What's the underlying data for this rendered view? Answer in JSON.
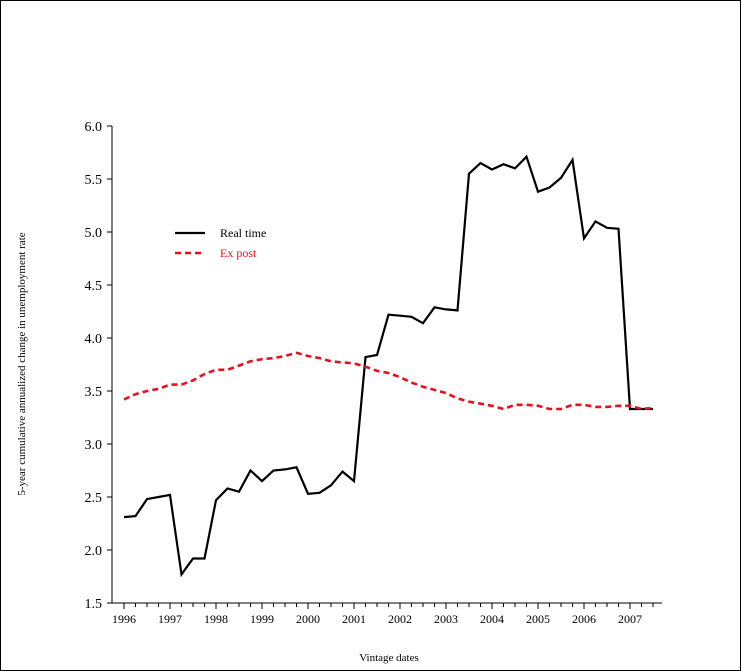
{
  "chart_data": {
    "type": "line",
    "xlabel": "Vintage dates",
    "ylabel": "5-year cumulative annualized change in unemployment rate",
    "ylim": [
      1.5,
      6.0
    ],
    "yticks": [
      "1.5",
      "2.0",
      "2.5",
      "3.0",
      "3.5",
      "4.0",
      "4.5",
      "5.0",
      "5.5",
      "6.0"
    ],
    "xticks": [
      "1996",
      "1997",
      "1998",
      "1999",
      "2000",
      "2001",
      "2002",
      "2003",
      "2004",
      "2005",
      "2006",
      "2007"
    ],
    "legend_position": "upper-left",
    "grid": false,
    "series": [
      {
        "name": "Real time",
        "color": "#000000",
        "style": "solid",
        "x": [
          1996.0,
          1996.25,
          1996.5,
          1996.75,
          1997.0,
          1997.25,
          1997.5,
          1997.75,
          1998.0,
          1998.25,
          1998.5,
          1998.75,
          1999.0,
          1999.25,
          1999.5,
          1999.75,
          2000.0,
          2000.25,
          2000.5,
          2000.75,
          2001.0,
          2001.25,
          2001.5,
          2001.75,
          2002.0,
          2002.25,
          2002.5,
          2002.75,
          2003.0,
          2003.25,
          2003.5,
          2003.75,
          2004.0,
          2004.25,
          2004.5,
          2004.75,
          2005.0,
          2005.25,
          2005.5,
          2005.75,
          2006.0,
          2006.25,
          2006.5,
          2006.75,
          2007.0,
          2007.25,
          2007.5
        ],
        "y": [
          2.31,
          2.32,
          2.48,
          2.5,
          2.52,
          1.77,
          1.92,
          1.92,
          2.47,
          2.58,
          2.55,
          2.75,
          2.65,
          2.75,
          2.76,
          2.78,
          2.53,
          2.54,
          2.61,
          2.74,
          2.65,
          3.82,
          3.84,
          4.22,
          4.21,
          4.2,
          4.14,
          4.29,
          4.27,
          4.26,
          5.55,
          5.65,
          5.59,
          5.64,
          5.6,
          5.71,
          5.38,
          5.42,
          5.51,
          5.68,
          4.94,
          5.1,
          5.04,
          5.03,
          3.33,
          3.33,
          3.33
        ]
      },
      {
        "name": "Ex post",
        "color": "#e8101c",
        "style": "dashed",
        "x": [
          1996.0,
          1996.25,
          1996.5,
          1996.75,
          1997.0,
          1997.25,
          1997.5,
          1997.75,
          1998.0,
          1998.25,
          1998.5,
          1998.75,
          1999.0,
          1999.25,
          1999.5,
          1999.75,
          2000.0,
          2000.25,
          2000.5,
          2000.75,
          2001.0,
          2001.25,
          2001.5,
          2001.75,
          2002.0,
          2002.25,
          2002.5,
          2002.75,
          2003.0,
          2003.25,
          2003.5,
          2003.75,
          2004.0,
          2004.25,
          2004.5,
          2004.75,
          2005.0,
          2005.25,
          2005.5,
          2005.75,
          2006.0,
          2006.25,
          2006.5,
          2006.75,
          2007.0,
          2007.25,
          2007.5
        ],
        "y": [
          3.42,
          3.47,
          3.5,
          3.52,
          3.56,
          3.56,
          3.6,
          3.66,
          3.7,
          3.7,
          3.74,
          3.78,
          3.8,
          3.81,
          3.83,
          3.86,
          3.83,
          3.81,
          3.78,
          3.77,
          3.76,
          3.73,
          3.69,
          3.67,
          3.63,
          3.58,
          3.54,
          3.51,
          3.48,
          3.43,
          3.4,
          3.38,
          3.36,
          3.33,
          3.37,
          3.37,
          3.36,
          3.33,
          3.33,
          3.37,
          3.37,
          3.35,
          3.35,
          3.36,
          3.36,
          3.33,
          3.34
        ]
      }
    ]
  }
}
